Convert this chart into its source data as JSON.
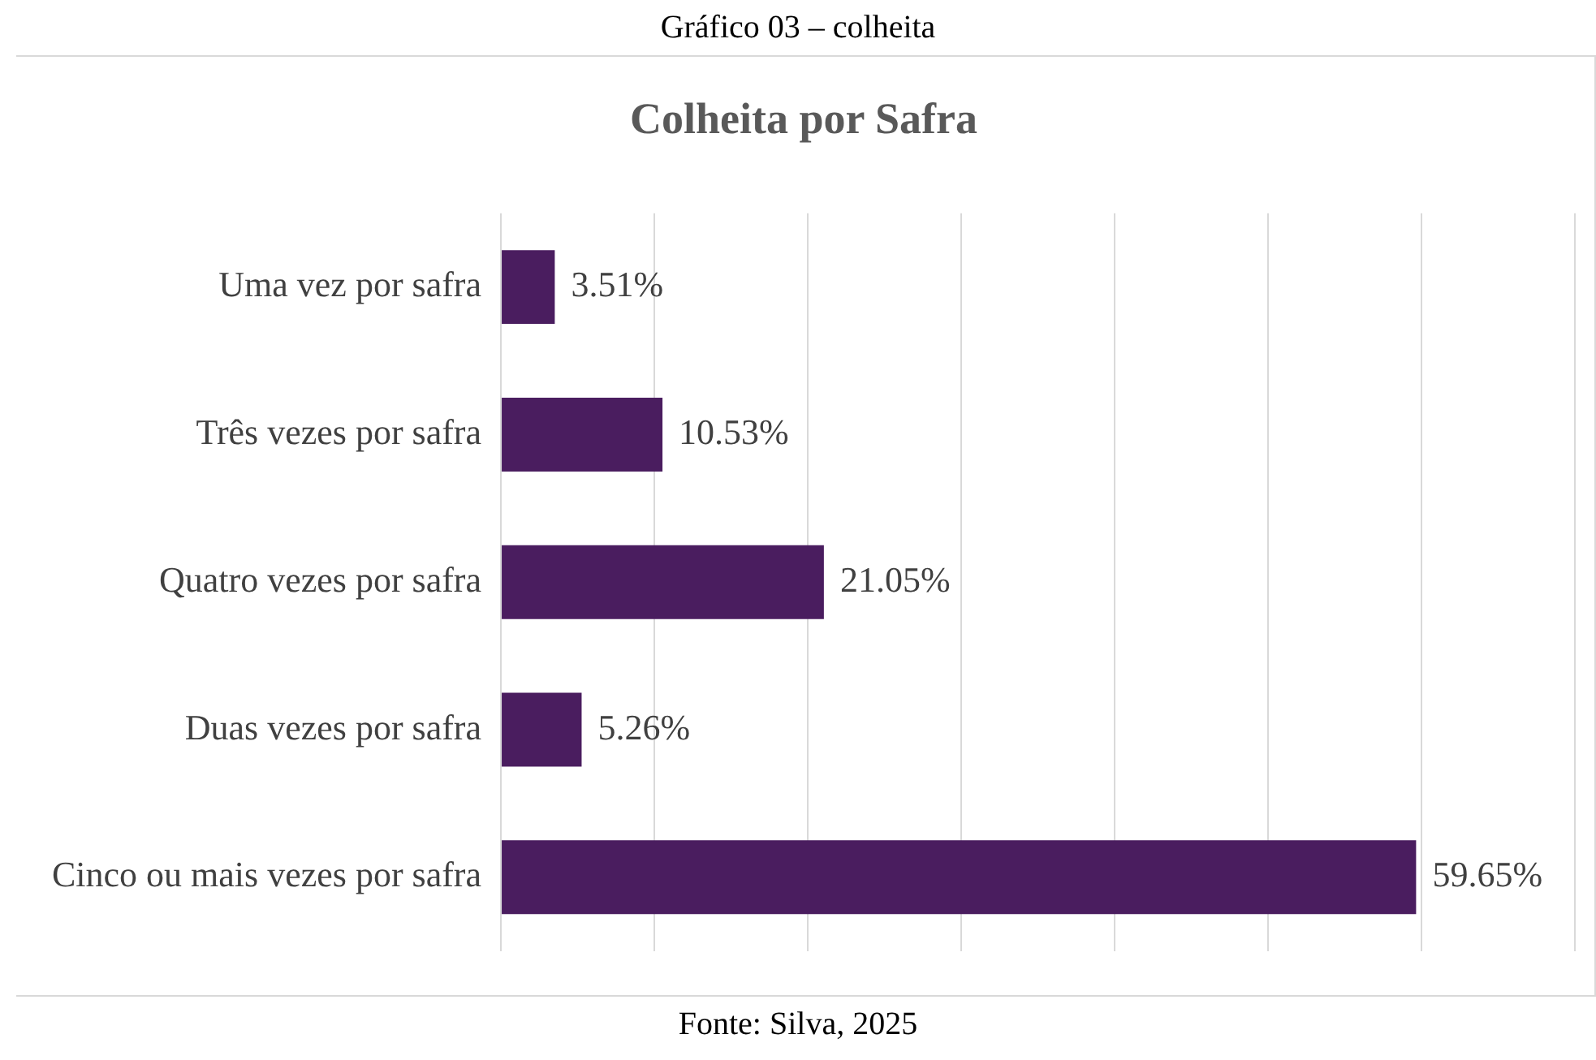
{
  "chart_data": {
    "type": "bar",
    "orientation": "horizontal",
    "title": "Gráfico 03 – colheita",
    "subtitle": "Colheita por Safra",
    "categories": [
      "Uma vez por safra",
      "Três vezes por safra",
      "Quatro vezes por safra",
      "Duas vezes por safra",
      "Cinco ou mais vezes por safra"
    ],
    "values": [
      3.51,
      10.53,
      21.05,
      5.26,
      59.65
    ],
    "value_labels": [
      "3.51%",
      "10.53%",
      "21.05%",
      "5.26%",
      "59.65%"
    ],
    "color": "#4a1d5f",
    "xlim": [
      0,
      70
    ],
    "xticks": [
      {
        "value": 0,
        "label": null
      },
      {
        "value": 10,
        "label": null
      },
      {
        "value": 20,
        "label": null
      },
      {
        "value": 30,
        "label": null
      },
      {
        "value": 40,
        "label": null
      },
      {
        "value": 50,
        "label": null
      },
      {
        "value": 60,
        "label": null
      },
      {
        "value": 70,
        "label": null
      }
    ],
    "grid": "x",
    "tick_labels": "y",
    "annotations": [
      "Fonte: Silva, 2025"
    ]
  }
}
